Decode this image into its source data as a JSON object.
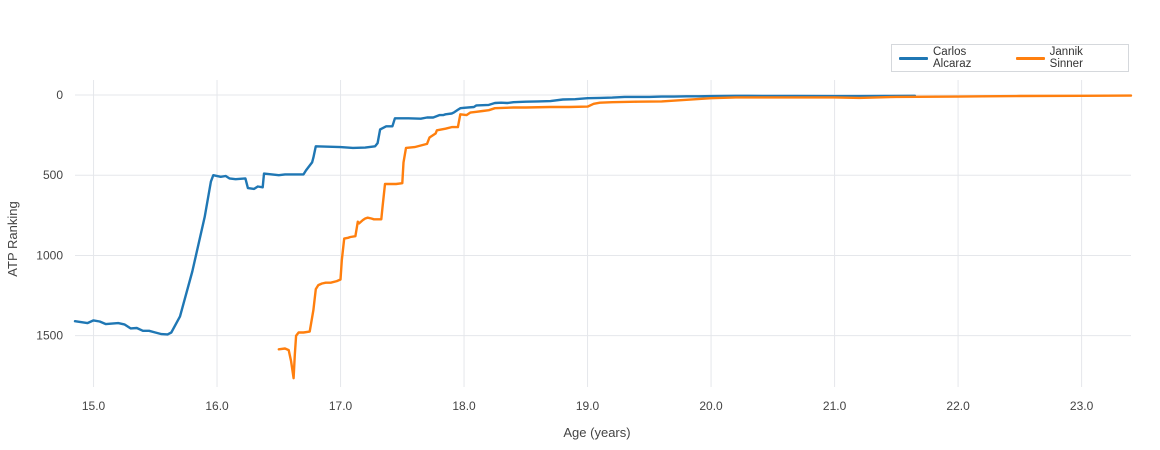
{
  "chart_data": {
    "type": "line",
    "xlabel": "Age (years)",
    "ylabel": "ATP Ranking",
    "xlim": [
      14.85,
      23.4
    ],
    "ylim": [
      0,
      1820
    ],
    "y_reversed": true,
    "x_ticks": [
      "15.0",
      "16.0",
      "17.0",
      "18.0",
      "19.0",
      "20.0",
      "21.0",
      "22.0",
      "23.0"
    ],
    "y_ticks": [
      "0",
      "500",
      "1000",
      "1500"
    ],
    "grid": true,
    "legend_position": "top-right",
    "series": [
      {
        "name": "Carlos Alcaraz",
        "color": "#1f77b4",
        "points": [
          [
            14.85,
            1410
          ],
          [
            14.95,
            1422
          ],
          [
            15.0,
            1405
          ],
          [
            15.05,
            1412
          ],
          [
            15.1,
            1428
          ],
          [
            15.2,
            1422
          ],
          [
            15.25,
            1430
          ],
          [
            15.3,
            1455
          ],
          [
            15.35,
            1452
          ],
          [
            15.4,
            1470
          ],
          [
            15.45,
            1470
          ],
          [
            15.5,
            1480
          ],
          [
            15.55,
            1490
          ],
          [
            15.6,
            1492
          ],
          [
            15.63,
            1480
          ],
          [
            15.7,
            1380
          ],
          [
            15.8,
            1100
          ],
          [
            15.9,
            760
          ],
          [
            15.95,
            540
          ],
          [
            15.97,
            500
          ],
          [
            16.03,
            510
          ],
          [
            16.07,
            505
          ],
          [
            16.1,
            520
          ],
          [
            16.15,
            525
          ],
          [
            16.23,
            520
          ],
          [
            16.25,
            580
          ],
          [
            16.3,
            585
          ],
          [
            16.33,
            570
          ],
          [
            16.37,
            575
          ],
          [
            16.38,
            490
          ],
          [
            16.5,
            500
          ],
          [
            16.55,
            495
          ],
          [
            16.7,
            495
          ],
          [
            16.72,
            470
          ],
          [
            16.77,
            420
          ],
          [
            16.78,
            390
          ],
          [
            16.8,
            320
          ],
          [
            16.9,
            322
          ],
          [
            17.0,
            325
          ],
          [
            17.1,
            330
          ],
          [
            17.2,
            328
          ],
          [
            17.28,
            320
          ],
          [
            17.3,
            300
          ],
          [
            17.32,
            215
          ],
          [
            17.37,
            195
          ],
          [
            17.42,
            195
          ],
          [
            17.44,
            145
          ],
          [
            17.55,
            145
          ],
          [
            17.65,
            148
          ],
          [
            17.7,
            140
          ],
          [
            17.75,
            140
          ],
          [
            17.8,
            125
          ],
          [
            17.83,
            125
          ],
          [
            17.85,
            120
          ],
          [
            17.9,
            115
          ],
          [
            17.92,
            108
          ],
          [
            17.95,
            92
          ],
          [
            17.97,
            82
          ],
          [
            18.0,
            80
          ],
          [
            18.08,
            75
          ],
          [
            18.1,
            65
          ],
          [
            18.2,
            62
          ],
          [
            18.25,
            50
          ],
          [
            18.3,
            48
          ],
          [
            18.35,
            50
          ],
          [
            18.4,
            45
          ],
          [
            18.5,
            42
          ],
          [
            18.6,
            40
          ],
          [
            18.7,
            38
          ],
          [
            18.8,
            28
          ],
          [
            18.9,
            26
          ],
          [
            19.0,
            20
          ],
          [
            19.1,
            18
          ],
          [
            19.2,
            16
          ],
          [
            19.3,
            12
          ],
          [
            19.5,
            12
          ],
          [
            19.6,
            10
          ],
          [
            19.7,
            10
          ],
          [
            19.8,
            8
          ],
          [
            19.9,
            8
          ],
          [
            20.0,
            7
          ],
          [
            20.1,
            6
          ],
          [
            20.2,
            5
          ],
          [
            20.3,
            5
          ],
          [
            20.5,
            6
          ],
          [
            20.7,
            6
          ],
          [
            21.0,
            7
          ],
          [
            21.2,
            7
          ],
          [
            21.4,
            6
          ],
          [
            21.65,
            5
          ]
        ]
      },
      {
        "name": "Jannik Sinner",
        "color": "#ff7f0e",
        "points": [
          [
            16.5,
            1585
          ],
          [
            16.55,
            1580
          ],
          [
            16.58,
            1590
          ],
          [
            16.6,
            1660
          ],
          [
            16.62,
            1765
          ],
          [
            16.63,
            1620
          ],
          [
            16.64,
            1500
          ],
          [
            16.66,
            1480
          ],
          [
            16.7,
            1480
          ],
          [
            16.75,
            1475
          ],
          [
            16.78,
            1340
          ],
          [
            16.8,
            1210
          ],
          [
            16.82,
            1185
          ],
          [
            16.85,
            1175
          ],
          [
            16.88,
            1170
          ],
          [
            16.92,
            1170
          ],
          [
            16.97,
            1160
          ],
          [
            17.0,
            1150
          ],
          [
            17.01,
            1030
          ],
          [
            17.03,
            895
          ],
          [
            17.06,
            890
          ],
          [
            17.08,
            885
          ],
          [
            17.12,
            880
          ],
          [
            17.14,
            790
          ],
          [
            17.15,
            800
          ],
          [
            17.18,
            780
          ],
          [
            17.2,
            770
          ],
          [
            17.22,
            765
          ],
          [
            17.25,
            770
          ],
          [
            17.27,
            775
          ],
          [
            17.33,
            775
          ],
          [
            17.34,
            700
          ],
          [
            17.36,
            555
          ],
          [
            17.45,
            555
          ],
          [
            17.5,
            550
          ],
          [
            17.51,
            420
          ],
          [
            17.53,
            330
          ],
          [
            17.6,
            325
          ],
          [
            17.65,
            315
          ],
          [
            17.7,
            305
          ],
          [
            17.72,
            265
          ],
          [
            17.77,
            240
          ],
          [
            17.78,
            220
          ],
          [
            17.85,
            210
          ],
          [
            17.9,
            200
          ],
          [
            17.95,
            200
          ],
          [
            17.97,
            120
          ],
          [
            18.02,
            125
          ],
          [
            18.05,
            110
          ],
          [
            18.1,
            105
          ],
          [
            18.15,
            100
          ],
          [
            18.2,
            95
          ],
          [
            18.25,
            82
          ],
          [
            18.4,
            78
          ],
          [
            18.5,
            78
          ],
          [
            18.7,
            75
          ],
          [
            18.85,
            75
          ],
          [
            19.0,
            72
          ],
          [
            19.05,
            55
          ],
          [
            19.1,
            48
          ],
          [
            19.2,
            45
          ],
          [
            19.4,
            42
          ],
          [
            19.6,
            40
          ],
          [
            19.8,
            30
          ],
          [
            20.0,
            20
          ],
          [
            20.2,
            15
          ],
          [
            20.4,
            15
          ],
          [
            20.6,
            15
          ],
          [
            21.0,
            15
          ],
          [
            21.2,
            18
          ],
          [
            21.5,
            12
          ],
          [
            22.0,
            10
          ],
          [
            22.2,
            8
          ],
          [
            22.5,
            6
          ],
          [
            23.0,
            5
          ],
          [
            23.4,
            4
          ]
        ]
      }
    ]
  }
}
